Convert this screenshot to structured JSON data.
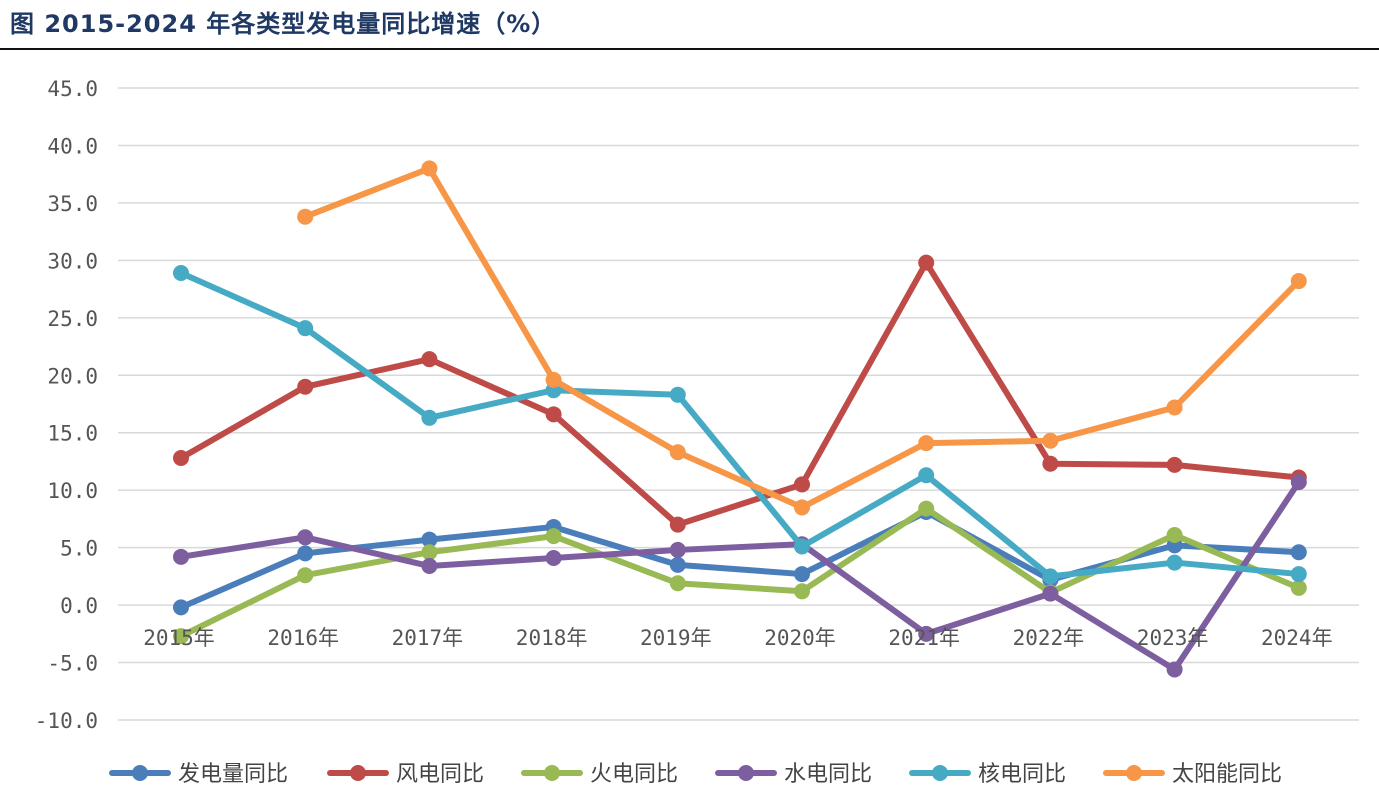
{
  "title": "图 2015-2024 年各类型发电量同比增速（%）",
  "chart_data": {
    "type": "line",
    "categories": [
      "2015年",
      "2016年",
      "2017年",
      "2018年",
      "2019年",
      "2020年",
      "2021年",
      "2022年",
      "2023年",
      "2024年"
    ],
    "ylim": [
      -10,
      45
    ],
    "yticks": [
      "45.0",
      "40.0",
      "35.0",
      "30.0",
      "25.0",
      "20.0",
      "15.0",
      "10.0",
      "5.0",
      "0.0",
      "-5.0",
      "-10.0"
    ],
    "grid": true,
    "legend_position": "bottom",
    "series": [
      {
        "name": "发电量同比",
        "color": "#4a7ebb",
        "values": [
          -0.2,
          4.5,
          5.7,
          6.8,
          3.5,
          2.7,
          8.1,
          2.2,
          5.2,
          4.6
        ]
      },
      {
        "name": "风电同比",
        "color": "#be4b48",
        "values": [
          12.8,
          19.0,
          21.4,
          16.6,
          7.0,
          10.5,
          29.8,
          12.3,
          12.2,
          11.1
        ]
      },
      {
        "name": "火电同比",
        "color": "#98b954",
        "values": [
          -2.7,
          2.6,
          4.6,
          6.0,
          1.9,
          1.2,
          8.4,
          1.1,
          6.1,
          1.5
        ]
      },
      {
        "name": "水电同比",
        "color": "#7d5fa0",
        "values": [
          4.2,
          5.9,
          3.4,
          4.1,
          4.8,
          5.3,
          -2.5,
          1.0,
          -5.6,
          10.7
        ]
      },
      {
        "name": "核电同比",
        "color": "#46aac5",
        "values": [
          28.9,
          24.1,
          16.3,
          18.7,
          18.3,
          5.1,
          11.3,
          2.5,
          3.7,
          2.7
        ]
      },
      {
        "name": "太阳能同比",
        "color": "#f79646",
        "values": [
          null,
          33.8,
          38.0,
          19.6,
          13.3,
          8.5,
          14.1,
          14.3,
          17.2,
          28.2
        ]
      }
    ]
  }
}
